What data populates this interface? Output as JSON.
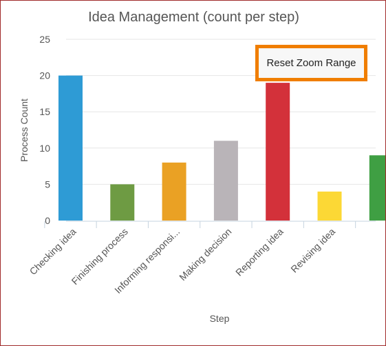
{
  "chart_data": {
    "type": "bar",
    "title": "Idea Management (count per step)",
    "xlabel": "Step",
    "ylabel": "Process Count",
    "ylim": [
      0,
      25
    ],
    "yticks": [
      0,
      5,
      10,
      15,
      20,
      25
    ],
    "grid": true,
    "categories": [
      "Checking idea",
      "Finishing process",
      "Informing responsi...",
      "Making decision",
      "Reporting idea",
      "Revising idea",
      ""
    ],
    "values": [
      20,
      5,
      8,
      11,
      19,
      4,
      9
    ],
    "colors": [
      "#2e9bd5",
      "#6e9b43",
      "#eaa124",
      "#b9b4b8",
      "#d3313a",
      "#fcd835",
      "#3f9f43"
    ]
  },
  "reset_button": {
    "label": "Reset Zoom Range"
  }
}
